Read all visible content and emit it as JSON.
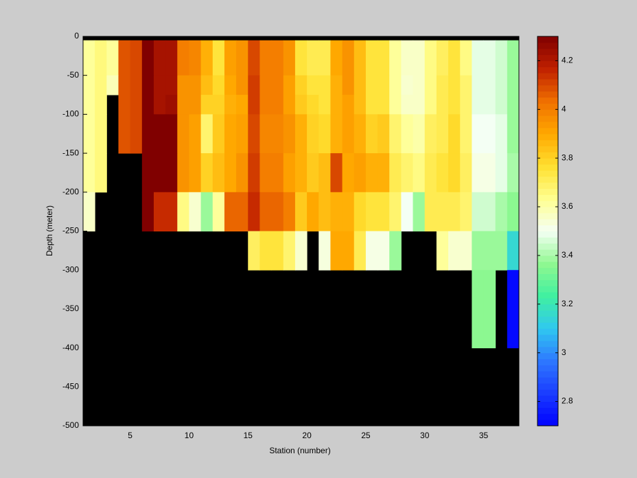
{
  "chart_data": {
    "type": "heatmap",
    "xlabel": "Station (number)",
    "ylabel": "Depth (meter)",
    "x": [
      1,
      2,
      3,
      4,
      5,
      6,
      7,
      8,
      9,
      10,
      11,
      12,
      13,
      14,
      15,
      16,
      17,
      18,
      19,
      20,
      21,
      22,
      23,
      24,
      25,
      26,
      27,
      28,
      29,
      30,
      31,
      32,
      33,
      34,
      35,
      36,
      37,
      38
    ],
    "y": [
      -5,
      -50,
      -75,
      -100,
      -150,
      -200,
      -250,
      -300,
      -400
    ],
    "z": [
      [
        3.62,
        3.66,
        3.62,
        4.08,
        4.1,
        4.3,
        4.22,
        4.22,
        4.0,
        3.98,
        3.88,
        3.75,
        3.92,
        3.95,
        4.1,
        4.0,
        4.0,
        3.95,
        3.75,
        3.72,
        3.72,
        3.9,
        3.95,
        3.85,
        3.75,
        3.75,
        3.62,
        3.56,
        3.56,
        3.65,
        3.7,
        3.75,
        3.65,
        3.48,
        3.48,
        3.45,
        3.38
      ],
      [
        3.62,
        3.66,
        3.58,
        4.08,
        4.1,
        4.3,
        4.22,
        4.22,
        3.95,
        3.95,
        3.85,
        3.78,
        3.9,
        3.95,
        4.12,
        4.0,
        4.0,
        3.92,
        3.8,
        3.75,
        3.75,
        3.88,
        3.95,
        3.85,
        3.75,
        3.75,
        3.62,
        3.55,
        3.56,
        3.65,
        3.72,
        3.75,
        3.68,
        3.48,
        3.48,
        3.45,
        3.38
      ],
      [
        3.62,
        3.66,
        null,
        4.08,
        4.1,
        4.3,
        4.22,
        4.24,
        3.95,
        3.95,
        3.8,
        3.8,
        3.88,
        3.9,
        4.12,
        4.0,
        4.0,
        3.92,
        3.82,
        3.78,
        3.75,
        3.88,
        3.92,
        3.85,
        3.75,
        3.75,
        3.62,
        3.56,
        3.56,
        3.65,
        3.72,
        3.75,
        3.68,
        3.48,
        3.48,
        3.45,
        3.38
      ],
      [
        3.62,
        3.66,
        null,
        4.08,
        4.1,
        4.3,
        4.3,
        4.3,
        3.95,
        3.92,
        3.68,
        3.82,
        3.9,
        3.92,
        4.1,
        3.98,
        3.98,
        3.95,
        3.88,
        3.8,
        3.78,
        3.88,
        3.92,
        3.88,
        3.8,
        3.82,
        3.68,
        3.62,
        3.6,
        3.7,
        3.72,
        3.78,
        3.68,
        3.5,
        3.5,
        3.48,
        3.38
      ],
      [
        3.62,
        3.66,
        null,
        null,
        null,
        4.3,
        4.3,
        4.3,
        3.95,
        3.92,
        3.8,
        3.85,
        3.9,
        3.95,
        4.12,
        4.0,
        4.0,
        3.92,
        3.88,
        3.82,
        3.85,
        4.1,
        3.9,
        3.92,
        3.88,
        3.88,
        3.72,
        3.68,
        3.65,
        3.72,
        3.75,
        3.78,
        3.7,
        3.52,
        3.52,
        3.48,
        3.4
      ],
      [
        3.56,
        null,
        null,
        null,
        null,
        4.3,
        4.15,
        4.15,
        3.65,
        3.55,
        3.38,
        3.62,
        4.05,
        4.05,
        4.15,
        4.05,
        4.05,
        4.0,
        3.82,
        3.9,
        3.85,
        3.88,
        3.88,
        3.78,
        3.75,
        3.75,
        3.68,
        3.5,
        3.38,
        3.72,
        3.72,
        3.72,
        3.68,
        3.45,
        3.45,
        3.4,
        3.36
      ],
      [
        null,
        null,
        null,
        null,
        null,
        null,
        null,
        null,
        null,
        null,
        null,
        null,
        null,
        null,
        3.7,
        3.75,
        3.75,
        3.68,
        3.55,
        null,
        3.53,
        3.9,
        3.9,
        3.72,
        3.52,
        3.52,
        3.38,
        null,
        null,
        null,
        3.62,
        3.55,
        3.55,
        3.38,
        3.38,
        3.38,
        3.15
      ],
      [
        null,
        null,
        null,
        null,
        null,
        null,
        null,
        null,
        null,
        null,
        null,
        null,
        null,
        null,
        null,
        null,
        null,
        null,
        null,
        null,
        null,
        null,
        null,
        null,
        null,
        null,
        null,
        null,
        null,
        null,
        null,
        null,
        null,
        3.36,
        3.36,
        null,
        2.72
      ]
    ],
    "xlim": [
      1,
      38
    ],
    "ylim": [
      -500,
      0
    ],
    "xticks": [
      5,
      10,
      15,
      20,
      25,
      30,
      35
    ],
    "yticks": [
      -500,
      -450,
      -400,
      -350,
      -300,
      -250,
      -200,
      -150,
      -100,
      -50,
      0
    ],
    "clim": [
      2.7,
      4.3
    ],
    "cticks": [
      2.8,
      3,
      3.2,
      3.4,
      3.6,
      3.8,
      4,
      4.2
    ],
    "colormap": [
      "#0000ff",
      "#1a3cff",
      "#2e78ff",
      "#30c8f0",
      "#40f0a0",
      "#90f890",
      "#f4fff4",
      "#ffff90",
      "#ffe030",
      "#ffa800",
      "#f07000",
      "#c02000",
      "#800000"
    ],
    "nan_color": "#000000"
  }
}
